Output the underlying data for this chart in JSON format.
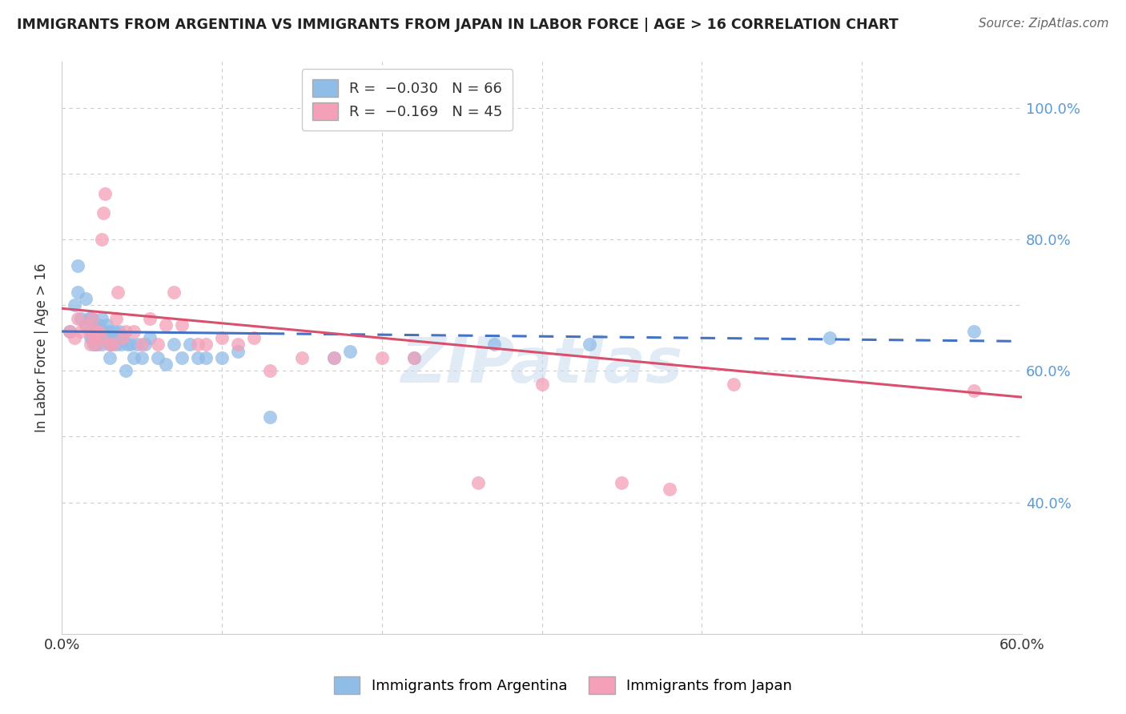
{
  "title": "IMMIGRANTS FROM ARGENTINA VS IMMIGRANTS FROM JAPAN IN LABOR FORCE | AGE > 16 CORRELATION CHART",
  "source": "Source: ZipAtlas.com",
  "ylabel": "In Labor Force | Age > 16",
  "xlim": [
    0.0,
    0.6
  ],
  "ylim": [
    0.2,
    1.07
  ],
  "ytick_vals": [
    0.4,
    0.6,
    0.8,
    1.0
  ],
  "xtick_vals": [
    0.0,
    0.1,
    0.2,
    0.3,
    0.4,
    0.5,
    0.6
  ],
  "argentina_color": "#90bce8",
  "japan_color": "#f4a0b8",
  "argentina_line_color": "#4472c4",
  "japan_line_color": "#d94f6e",
  "watermark": "ZIPatlas",
  "argentina_x": [
    0.005,
    0.008,
    0.01,
    0.01,
    0.012,
    0.015,
    0.015,
    0.017,
    0.018,
    0.018,
    0.018,
    0.019,
    0.019,
    0.02,
    0.02,
    0.02,
    0.02,
    0.021,
    0.021,
    0.022,
    0.022,
    0.023,
    0.023,
    0.023,
    0.025,
    0.025,
    0.025,
    0.026,
    0.027,
    0.028,
    0.03,
    0.03,
    0.03,
    0.031,
    0.032,
    0.033,
    0.034,
    0.035,
    0.036,
    0.037,
    0.038,
    0.04,
    0.041,
    0.043,
    0.045,
    0.047,
    0.05,
    0.052,
    0.055,
    0.06,
    0.065,
    0.07,
    0.075,
    0.08,
    0.085,
    0.09,
    0.1,
    0.11,
    0.13,
    0.17,
    0.18,
    0.22,
    0.27,
    0.33,
    0.48,
    0.57
  ],
  "argentina_y": [
    0.66,
    0.7,
    0.72,
    0.76,
    0.68,
    0.67,
    0.71,
    0.68,
    0.65,
    0.66,
    0.68,
    0.65,
    0.68,
    0.64,
    0.65,
    0.66,
    0.67,
    0.64,
    0.65,
    0.64,
    0.66,
    0.65,
    0.66,
    0.67,
    0.64,
    0.66,
    0.68,
    0.65,
    0.66,
    0.67,
    0.62,
    0.64,
    0.66,
    0.64,
    0.65,
    0.66,
    0.64,
    0.65,
    0.66,
    0.64,
    0.65,
    0.6,
    0.64,
    0.64,
    0.62,
    0.64,
    0.62,
    0.64,
    0.65,
    0.62,
    0.61,
    0.64,
    0.62,
    0.64,
    0.62,
    0.62,
    0.62,
    0.63,
    0.53,
    0.62,
    0.63,
    0.62,
    0.64,
    0.64,
    0.65,
    0.66
  ],
  "japan_x": [
    0.005,
    0.008,
    0.01,
    0.012,
    0.015,
    0.018,
    0.018,
    0.019,
    0.02,
    0.02,
    0.022,
    0.023,
    0.025,
    0.025,
    0.026,
    0.027,
    0.03,
    0.032,
    0.034,
    0.035,
    0.038,
    0.04,
    0.045,
    0.05,
    0.055,
    0.06,
    0.065,
    0.07,
    0.075,
    0.085,
    0.09,
    0.1,
    0.11,
    0.12,
    0.13,
    0.15,
    0.17,
    0.2,
    0.22,
    0.26,
    0.3,
    0.35,
    0.38,
    0.42,
    0.57
  ],
  "japan_y": [
    0.66,
    0.65,
    0.68,
    0.66,
    0.67,
    0.64,
    0.66,
    0.68,
    0.65,
    0.66,
    0.64,
    0.66,
    0.65,
    0.8,
    0.84,
    0.87,
    0.64,
    0.64,
    0.68,
    0.72,
    0.65,
    0.66,
    0.66,
    0.64,
    0.68,
    0.64,
    0.67,
    0.72,
    0.67,
    0.64,
    0.64,
    0.65,
    0.64,
    0.65,
    0.6,
    0.62,
    0.62,
    0.62,
    0.62,
    0.43,
    0.58,
    0.43,
    0.42,
    0.58,
    0.57
  ],
  "argentina_line_x_solid_start": 0.0,
  "argentina_line_x_solid_end": 0.13,
  "argentina_line_x_dash_end": 0.6,
  "argentina_line_y_at_0": 0.66,
  "argentina_line_y_at_06": 0.645,
  "japan_line_x_start": 0.0,
  "japan_line_x_end": 0.6,
  "japan_line_y_at_0": 0.695,
  "japan_line_y_at_06": 0.56
}
